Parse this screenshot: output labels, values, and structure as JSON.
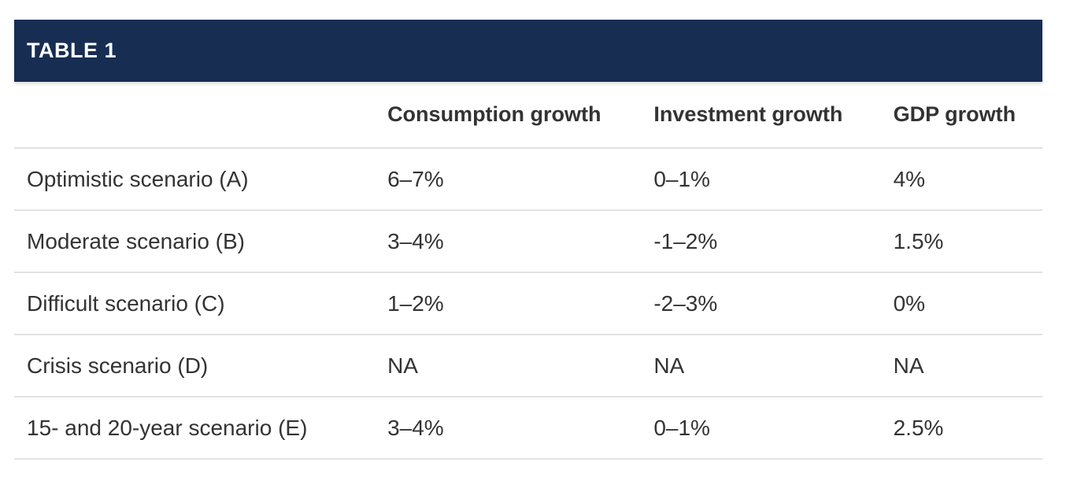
{
  "title_bar": {
    "label": "TABLE 1"
  },
  "table": {
    "columns": [
      "",
      "Consumption growth",
      "Investment growth",
      "GDP growth"
    ],
    "rows": [
      {
        "label": "Optimistic scenario (A)",
        "values": [
          "6–7%",
          "0–1%",
          "4%"
        ]
      },
      {
        "label": "Moderate scenario (B)",
        "values": [
          "3–4%",
          "-1–2%",
          "1.5%"
        ]
      },
      {
        "label": "Difficult scenario (C)",
        "values": [
          "1–2%",
          "-2–3%",
          "0%"
        ]
      },
      {
        "label": "Crisis scenario (D)",
        "values": [
          "NA",
          "NA",
          "NA"
        ]
      },
      {
        "label": "15- and 20-year scenario (E)",
        "values": [
          "3–4%",
          "0–1%",
          "2.5%"
        ]
      }
    ]
  },
  "colors": {
    "accent_navy": "#172D52",
    "row_border": "#E2E2E2",
    "body_text": "#333333",
    "title_text": "#FFFFFF"
  },
  "chart_data": {
    "type": "table",
    "title": "TABLE 1",
    "columns": [
      "",
      "Consumption growth",
      "Investment growth",
      "GDP growth"
    ],
    "rows": [
      [
        "Optimistic scenario (A)",
        "6–7%",
        "0–1%",
        "4%"
      ],
      [
        "Moderate scenario (B)",
        "3–4%",
        "-1–2%",
        "1.5%"
      ],
      [
        "Difficult scenario (C)",
        "1–2%",
        "-2–3%",
        "0%"
      ],
      [
        "Crisis scenario (D)",
        "NA",
        "NA",
        "NA"
      ],
      [
        "15- and 20-year scenario (E)",
        "3–4%",
        "0–1%",
        "2.5%"
      ]
    ]
  }
}
